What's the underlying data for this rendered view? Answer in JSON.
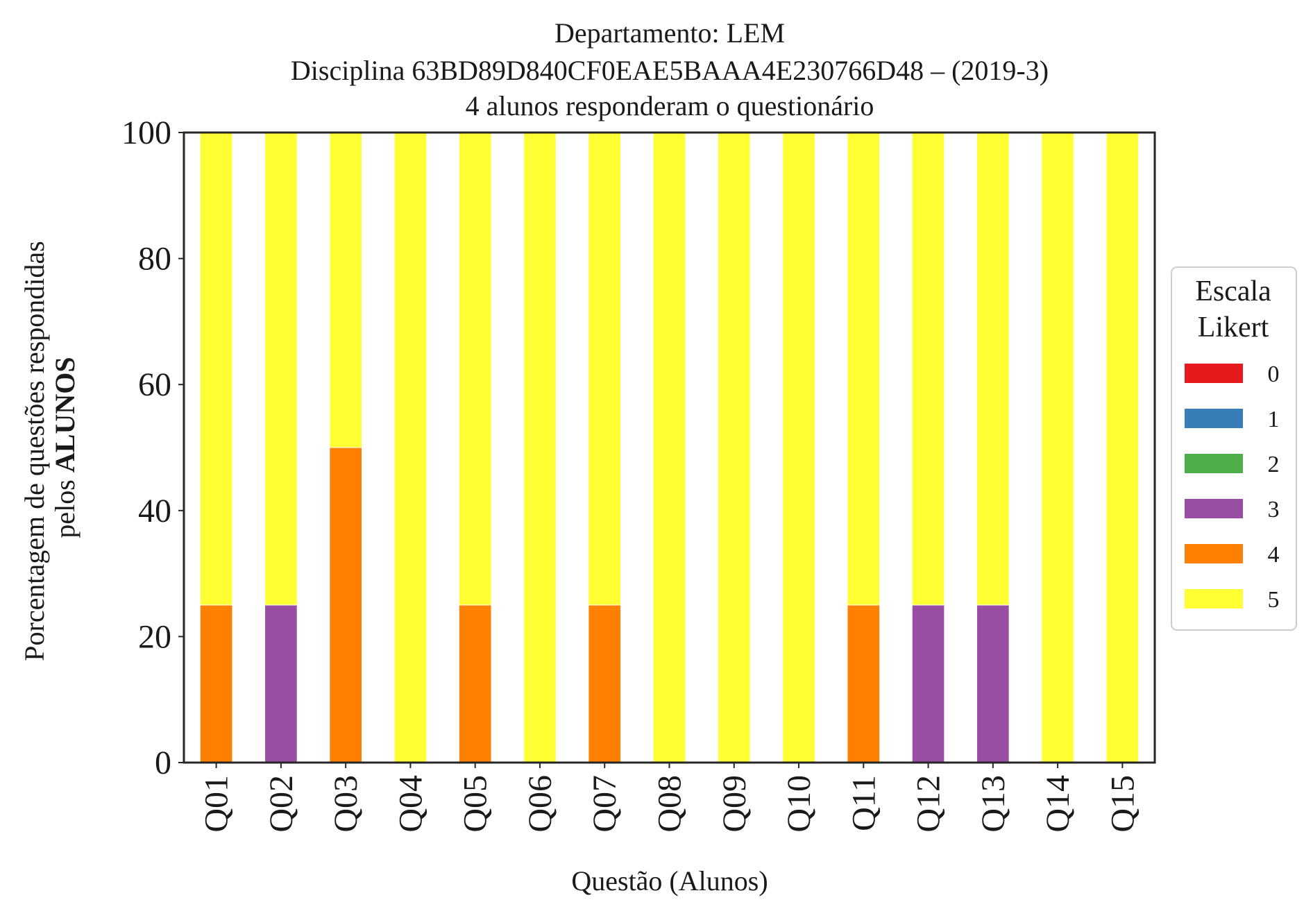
{
  "chart_data": {
    "type": "bar",
    "stacked": true,
    "title": "Departamento: LEM",
    "subtitle": "Disciplina 63BD89D840CF0EAE5BAAA4E230766D48 – (2019-3)",
    "subtitle2": "4 alunos responderam o questionário",
    "xlabel": "Questão (Alunos)",
    "ylabel_line1": "Porcentagem de questões respondidas",
    "ylabel_line2_prefix": "pelos ",
    "ylabel_line2_bold": "ALUNOS",
    "ylim": [
      0,
      100
    ],
    "yticks": [
      "0",
      "20",
      "40",
      "60",
      "80",
      "100"
    ],
    "grid": false,
    "categories": [
      "Q01",
      "Q02",
      "Q03",
      "Q04",
      "Q05",
      "Q06",
      "Q07",
      "Q08",
      "Q09",
      "Q10",
      "Q11",
      "Q12",
      "Q13",
      "Q14",
      "Q15"
    ],
    "legend": {
      "title_line1": "Escala",
      "title_line2": "Likert",
      "placement": "center-right-outside"
    },
    "series": [
      {
        "name": "0",
        "color": "#e41a1c",
        "values": [
          0,
          0,
          0,
          0,
          0,
          0,
          0,
          0,
          0,
          0,
          0,
          0,
          0,
          0,
          0
        ]
      },
      {
        "name": "1",
        "color": "#377eb8",
        "values": [
          0,
          0,
          0,
          0,
          0,
          0,
          0,
          0,
          0,
          0,
          0,
          0,
          0,
          0,
          0
        ]
      },
      {
        "name": "2",
        "color": "#4daf4a",
        "values": [
          0,
          0,
          0,
          0,
          0,
          0,
          0,
          0,
          0,
          0,
          0,
          0,
          0,
          0,
          0
        ]
      },
      {
        "name": "3",
        "color": "#984ea3",
        "values": [
          0,
          25,
          0,
          0,
          0,
          0,
          0,
          0,
          0,
          0,
          0,
          25,
          25,
          0,
          0
        ]
      },
      {
        "name": "4",
        "color": "#ff7f00",
        "values": [
          25,
          0,
          50,
          0,
          25,
          0,
          25,
          0,
          0,
          0,
          25,
          0,
          0,
          0,
          0
        ]
      },
      {
        "name": "5",
        "color": "#ffff33",
        "values": [
          75,
          75,
          50,
          100,
          75,
          100,
          75,
          100,
          100,
          100,
          75,
          75,
          75,
          100,
          100
        ]
      }
    ]
  }
}
